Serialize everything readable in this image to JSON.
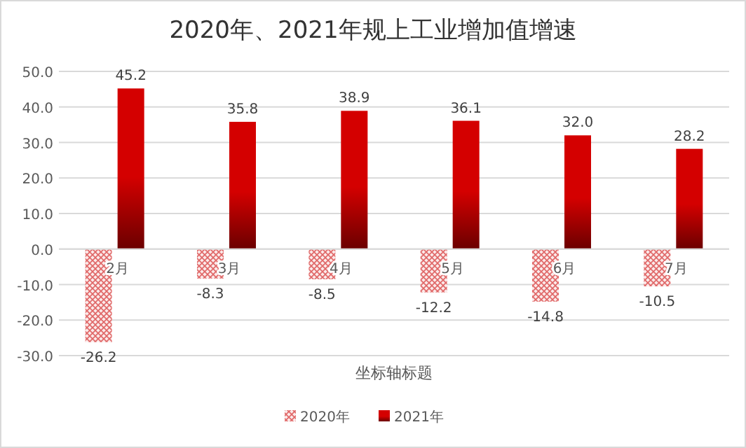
{
  "chart_data": {
    "type": "bar",
    "title": "2020年、2021年规上工业增加值增速",
    "xlabel": "坐标轴标题",
    "categories": [
      "2月",
      "3月",
      "4月",
      "5月",
      "6月",
      "7月"
    ],
    "series": [
      {
        "name": "2020年",
        "color": "#e06666",
        "values": [
          -26.2,
          -8.3,
          -8.5,
          -12.2,
          -14.8,
          -10.5
        ],
        "value_labels": [
          "-26.2",
          "-8.3",
          "-8.5",
          "-12.2",
          "-14.8",
          "-10.5"
        ]
      },
      {
        "name": "2021年",
        "color": "#d40000",
        "values": [
          45.2,
          35.8,
          38.9,
          36.1,
          32.0,
          28.2
        ],
        "value_labels": [
          "45.2",
          "35.8",
          "38.9",
          "36.1",
          "32.0",
          "28.2"
        ]
      }
    ],
    "ylim": [
      -30,
      50
    ],
    "yticks": [
      {
        "value": -30,
        "label": "-30.0"
      },
      {
        "value": -20,
        "label": "-20.0"
      },
      {
        "value": -10,
        "label": "-10.0"
      },
      {
        "value": 0,
        "label": "0.0"
      },
      {
        "value": 10,
        "label": "10.0"
      },
      {
        "value": 20,
        "label": "20.0"
      },
      {
        "value": 30,
        "label": "30.0"
      },
      {
        "value": 40,
        "label": "40.0"
      },
      {
        "value": 50,
        "label": "50.0"
      }
    ],
    "grid": "y",
    "legend": "bottom"
  }
}
